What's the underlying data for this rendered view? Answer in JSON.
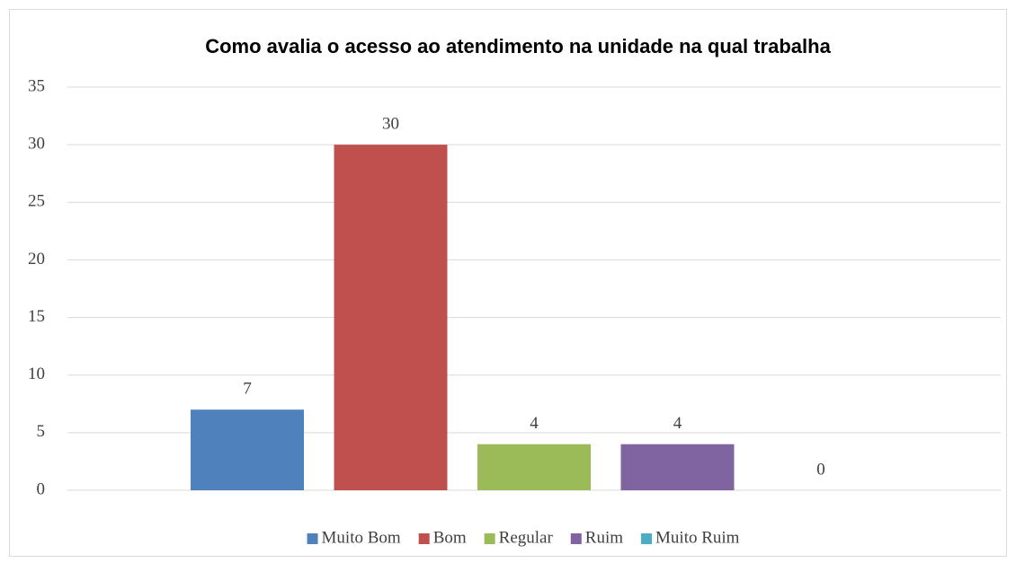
{
  "chart_data": {
    "type": "bar",
    "title": "Como avalia o acesso ao atendimento na unidade na qual trabalha",
    "categories": [
      null
    ],
    "series": [
      {
        "name": "Muito Bom",
        "color": "#4f81bd",
        "values": [
          7
        ]
      },
      {
        "name": "Bom",
        "color": "#c0504d",
        "values": [
          30
        ]
      },
      {
        "name": "Regular",
        "color": "#9bbb59",
        "values": [
          4
        ]
      },
      {
        "name": "Ruim",
        "color": "#8064a2",
        "values": [
          4
        ]
      },
      {
        "name": "Muito Ruim",
        "color": "#4bacc6",
        "values": [
          0
        ]
      }
    ],
    "ylim": [
      0,
      35
    ],
    "yticks": [
      0,
      5,
      10,
      15,
      20,
      25,
      30,
      35
    ],
    "grid": true,
    "legend": "bottom"
  }
}
